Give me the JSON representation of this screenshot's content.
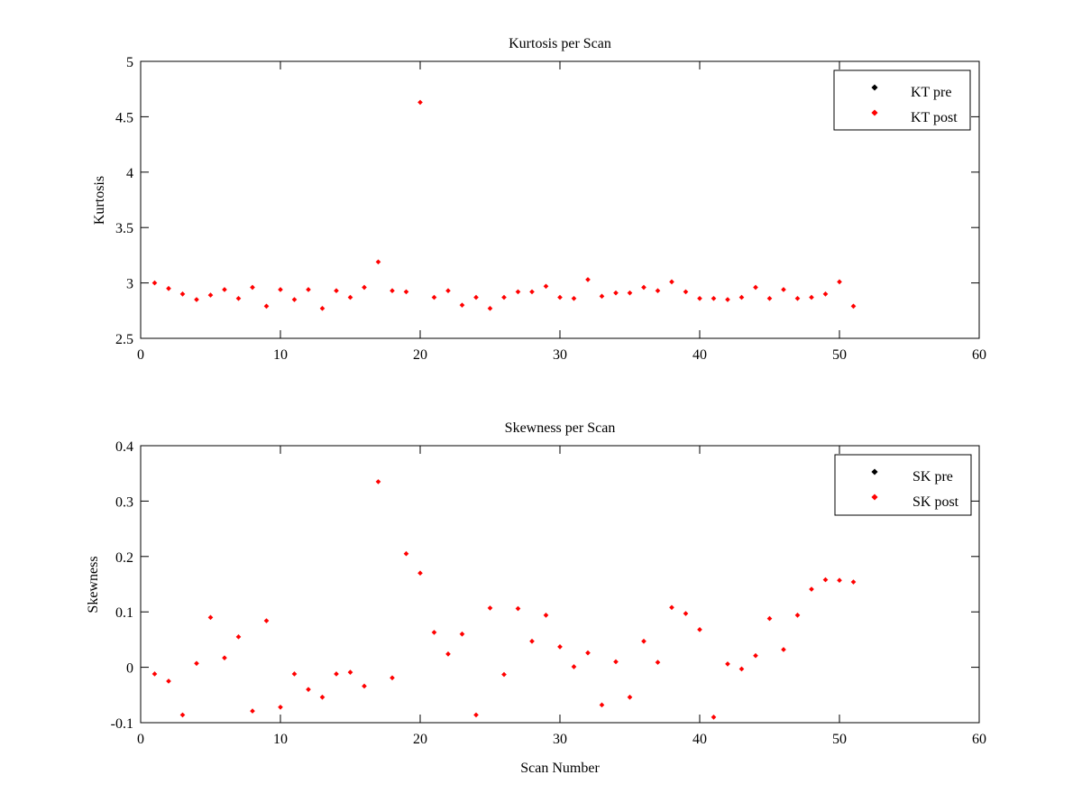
{
  "chart_data": [
    {
      "type": "scatter",
      "title": "Kurtosis per Scan",
      "xlabel": "",
      "ylabel": "Kurtosis",
      "xlim": [
        0,
        60
      ],
      "ylim": [
        2.5,
        5
      ],
      "xticks": [
        0,
        10,
        20,
        30,
        40,
        50,
        60
      ],
      "yticks": [
        2.5,
        3,
        3.5,
        4,
        4.5,
        5
      ],
      "xtick_labels": [
        "0",
        "10",
        "20",
        "30",
        "40",
        "50",
        "60"
      ],
      "ytick_labels": [
        "2.5",
        "3",
        "3.5",
        "4",
        "4.5",
        "5"
      ],
      "grid": false,
      "legend_position": "top-right",
      "series": [
        {
          "name": "KT pre",
          "color": "#000000",
          "x": [],
          "y": []
        },
        {
          "name": "KT post",
          "color": "#ff0000",
          "x": [
            1,
            2,
            3,
            4,
            5,
            6,
            7,
            8,
            9,
            10,
            11,
            12,
            13,
            14,
            15,
            16,
            17,
            18,
            19,
            20,
            21,
            22,
            23,
            24,
            25,
            26,
            27,
            28,
            29,
            30,
            31,
            32,
            33,
            34,
            35,
            36,
            37,
            38,
            39,
            40,
            41,
            42,
            43,
            44,
            45,
            46,
            47,
            48,
            49,
            50,
            51
          ],
          "y": [
            3.0,
            2.95,
            2.9,
            2.85,
            2.89,
            2.94,
            2.86,
            2.96,
            2.79,
            2.94,
            2.85,
            2.94,
            2.77,
            2.93,
            2.87,
            2.96,
            3.19,
            2.93,
            2.92,
            4.63,
            2.87,
            2.93,
            2.8,
            2.87,
            2.77,
            2.87,
            2.92,
            2.92,
            2.97,
            2.87,
            2.86,
            3.03,
            2.88,
            2.91,
            2.91,
            2.96,
            2.93,
            3.01,
            2.92,
            2.86,
            2.86,
            2.85,
            2.87,
            2.96,
            2.86,
            2.94,
            2.86,
            2.87,
            2.9,
            3.01,
            2.79
          ]
        }
      ]
    },
    {
      "type": "scatter",
      "title": "Skewness per Scan",
      "xlabel": "Scan Number",
      "ylabel": "Skewness",
      "xlim": [
        0,
        60
      ],
      "ylim": [
        -0.1,
        0.4
      ],
      "xticks": [
        0,
        10,
        20,
        30,
        40,
        50,
        60
      ],
      "yticks": [
        -0.1,
        0,
        0.1,
        0.2,
        0.3,
        0.4
      ],
      "xtick_labels": [
        "0",
        "10",
        "20",
        "30",
        "40",
        "50",
        "60"
      ],
      "ytick_labels": [
        "-0.1",
        "0",
        "0.1",
        "0.2",
        "0.3",
        "0.4"
      ],
      "grid": false,
      "legend_position": "top-right",
      "series": [
        {
          "name": "SK pre",
          "color": "#000000",
          "x": [],
          "y": []
        },
        {
          "name": "SK post",
          "color": "#ff0000",
          "x": [
            1,
            2,
            3,
            4,
            5,
            6,
            7,
            8,
            9,
            10,
            11,
            12,
            13,
            14,
            15,
            16,
            17,
            18,
            19,
            20,
            21,
            22,
            23,
            24,
            25,
            26,
            27,
            28,
            29,
            30,
            31,
            32,
            33,
            34,
            35,
            36,
            37,
            38,
            39,
            40,
            41,
            42,
            43,
            44,
            45,
            46,
            47,
            48,
            49,
            50,
            51
          ],
          "y": [
            -0.012,
            -0.025,
            -0.086,
            0.007,
            0.09,
            0.017,
            0.055,
            -0.079,
            0.084,
            -0.072,
            -0.012,
            -0.04,
            -0.054,
            -0.012,
            -0.009,
            -0.034,
            0.335,
            -0.019,
            0.205,
            0.17,
            0.063,
            0.024,
            0.06,
            -0.086,
            0.107,
            -0.013,
            0.106,
            0.047,
            0.094,
            0.037,
            0.001,
            0.026,
            -0.068,
            0.01,
            -0.054,
            0.047,
            0.009,
            0.108,
            0.097,
            0.068,
            -0.09,
            0.006,
            -0.003,
            0.021,
            0.088,
            0.032,
            0.094,
            0.141,
            0.158,
            0.157,
            0.154
          ]
        }
      ]
    }
  ]
}
